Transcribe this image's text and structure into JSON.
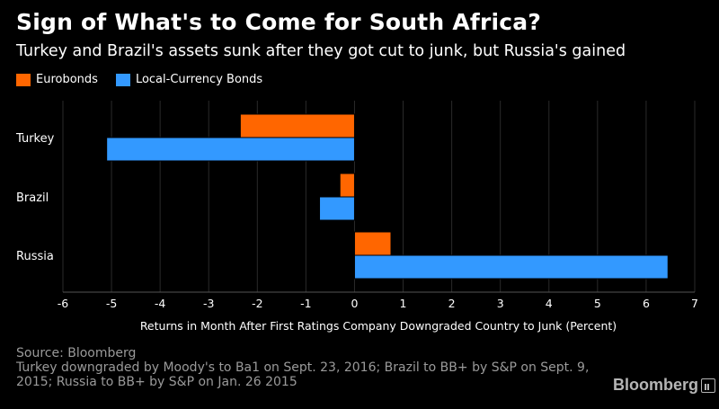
{
  "title": "Sign of What's to Come for South Africa?",
  "subtitle": "Turkey and Brazil's assets sunk after they got cut to junk, but Russia's gained",
  "legend": {
    "items": [
      {
        "label": "Eurobonds",
        "color": "#ff6600"
      },
      {
        "label": "Local-Currency Bonds",
        "color": "#3399ff"
      }
    ]
  },
  "chart_data": {
    "type": "bar",
    "orientation": "horizontal",
    "categories": [
      "Turkey",
      "Brazil",
      "Russia"
    ],
    "series": [
      {
        "name": "Eurobonds",
        "color": "#ff6600",
        "values": [
          -2.35,
          -0.3,
          0.75
        ]
      },
      {
        "name": "Local-Currency Bonds",
        "color": "#3399ff",
        "values": [
          -5.1,
          -0.72,
          6.45
        ]
      }
    ],
    "xlim": [
      -6,
      7
    ],
    "xticks": [
      "-6",
      "-5",
      "-4",
      "-3",
      "-2",
      "-1",
      "0",
      "1",
      "2",
      "3",
      "4",
      "5",
      "6",
      "7"
    ],
    "xlabel": "Returns in Month After First Ratings Company Downgraded Country to Junk (Percent)",
    "grid": true,
    "legend_position": "top-left"
  },
  "footer": {
    "source": "Source: Bloomberg",
    "note": "Turkey downgraded by Moody's to Ba1 on Sept. 23, 2016; Brazil to BB+ by S&P on Sept. 9, 2015; Russia to BB+ by S&P on Jan. 26 2015",
    "brand": "Bloomberg"
  }
}
